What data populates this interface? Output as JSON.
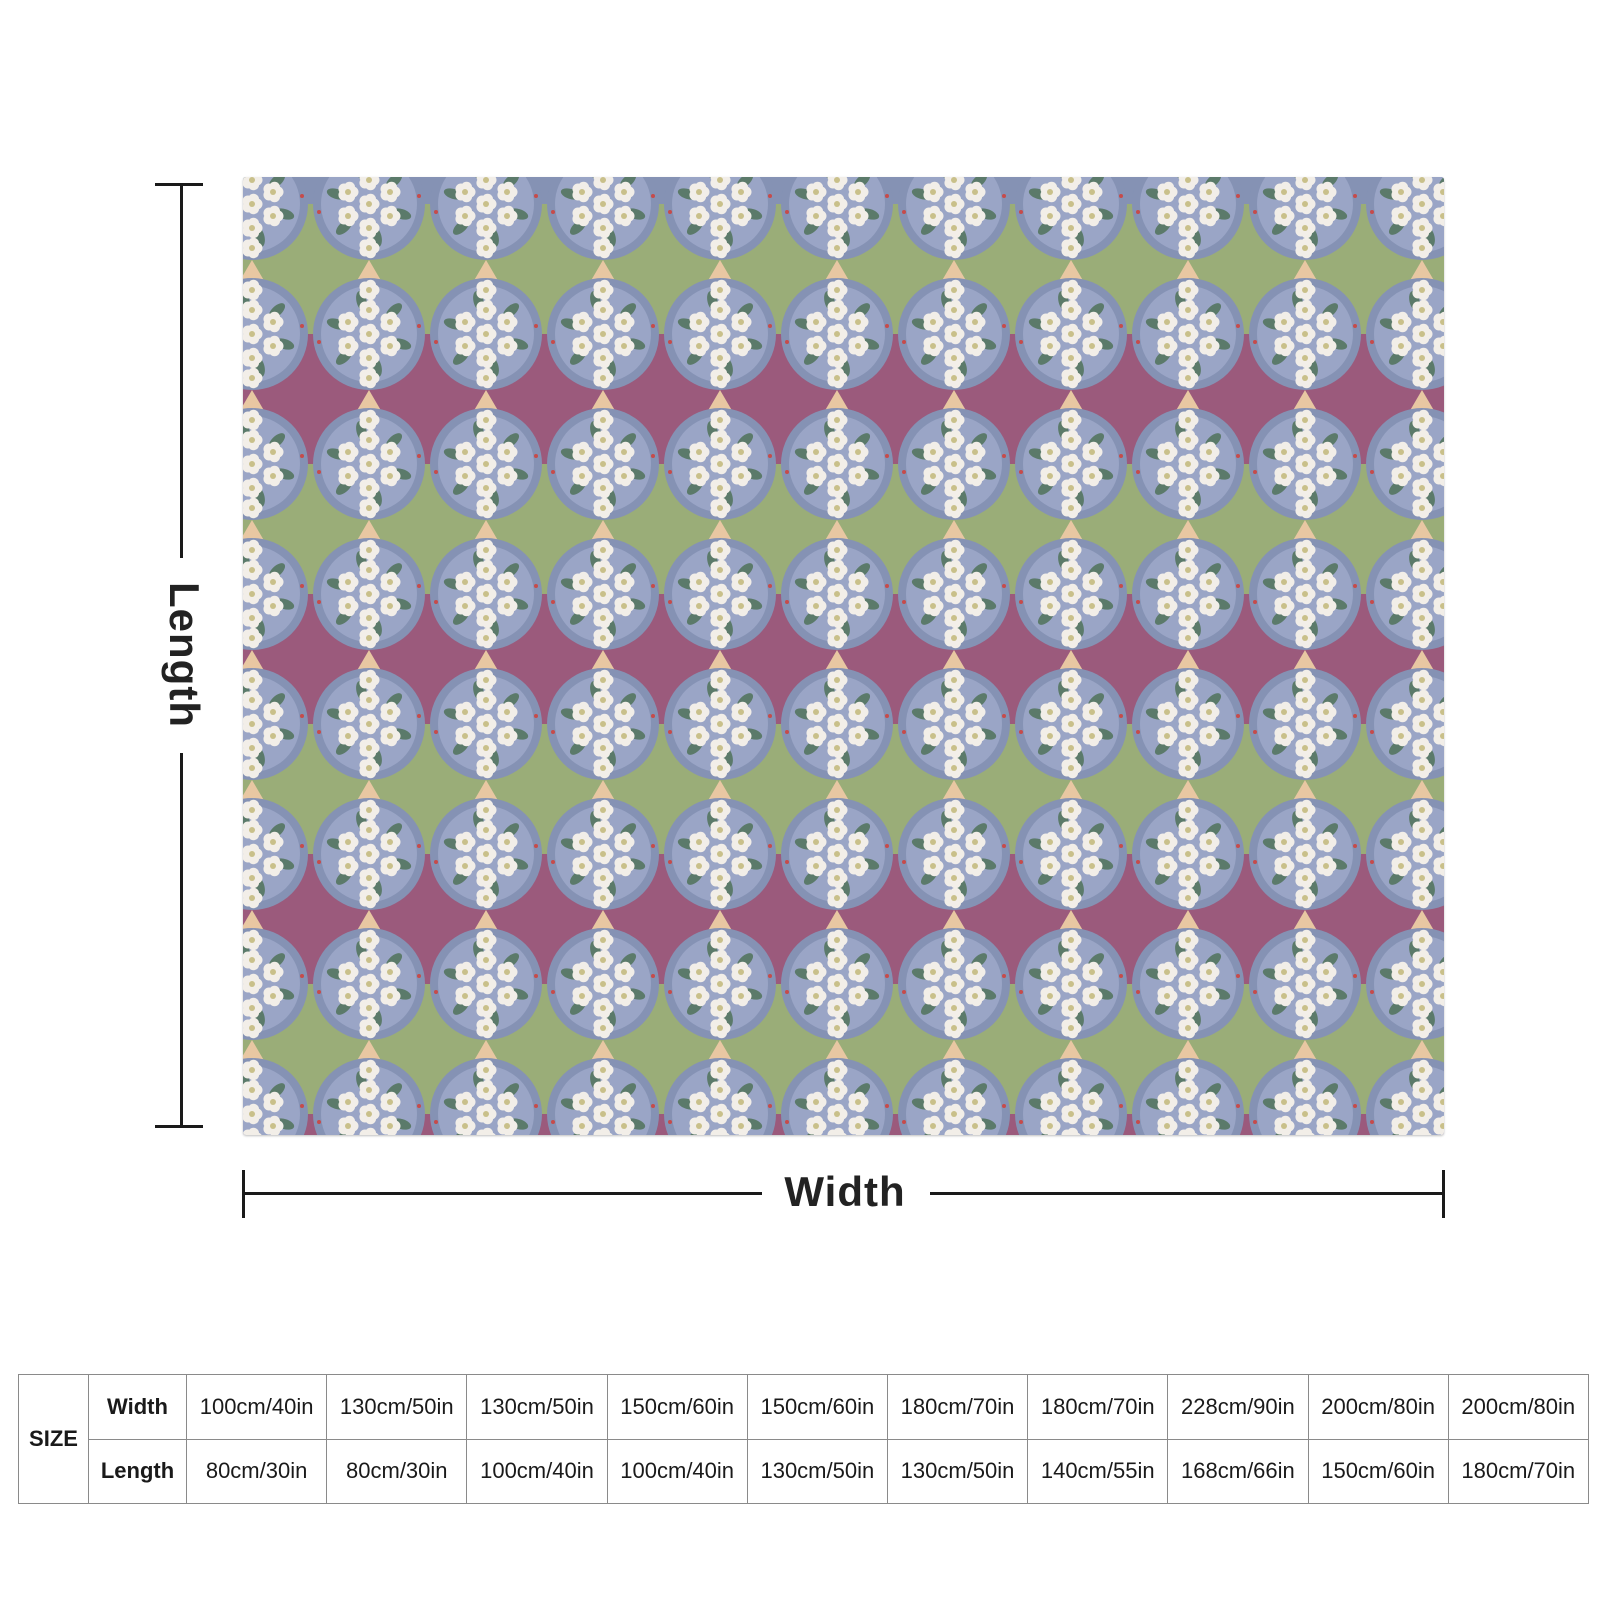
{
  "dimensions": {
    "length_label": "Length",
    "width_label": "Width"
  },
  "pattern": {
    "colors": {
      "green_band": "#9aad78",
      "mauve_band": "#9b5a7c",
      "circle_blue": "#8592b4",
      "circle_inner": "#9aa5c6",
      "flower": "#f2eee8",
      "flower_center": "#c9c08a",
      "leaf": "#5b7a6a",
      "diamond_peach": "#e8c7a2",
      "dot_red": "#c64b4b"
    }
  },
  "size_table": {
    "size_label": "SIZE",
    "width_label": "Width",
    "length_label": "Length",
    "widths": [
      "100cm/40in",
      "130cm/50in",
      "130cm/50in",
      "150cm/60in",
      "150cm/60in",
      "180cm/70in",
      "180cm/70in",
      "228cm/90in",
      "200cm/80in",
      "200cm/80in"
    ],
    "lengths": [
      "80cm/30in",
      "80cm/30in",
      "100cm/40in",
      "100cm/40in",
      "130cm/50in",
      "130cm/50in",
      "140cm/55in",
      "168cm/66in",
      "150cm/60in",
      "180cm/70in"
    ]
  }
}
